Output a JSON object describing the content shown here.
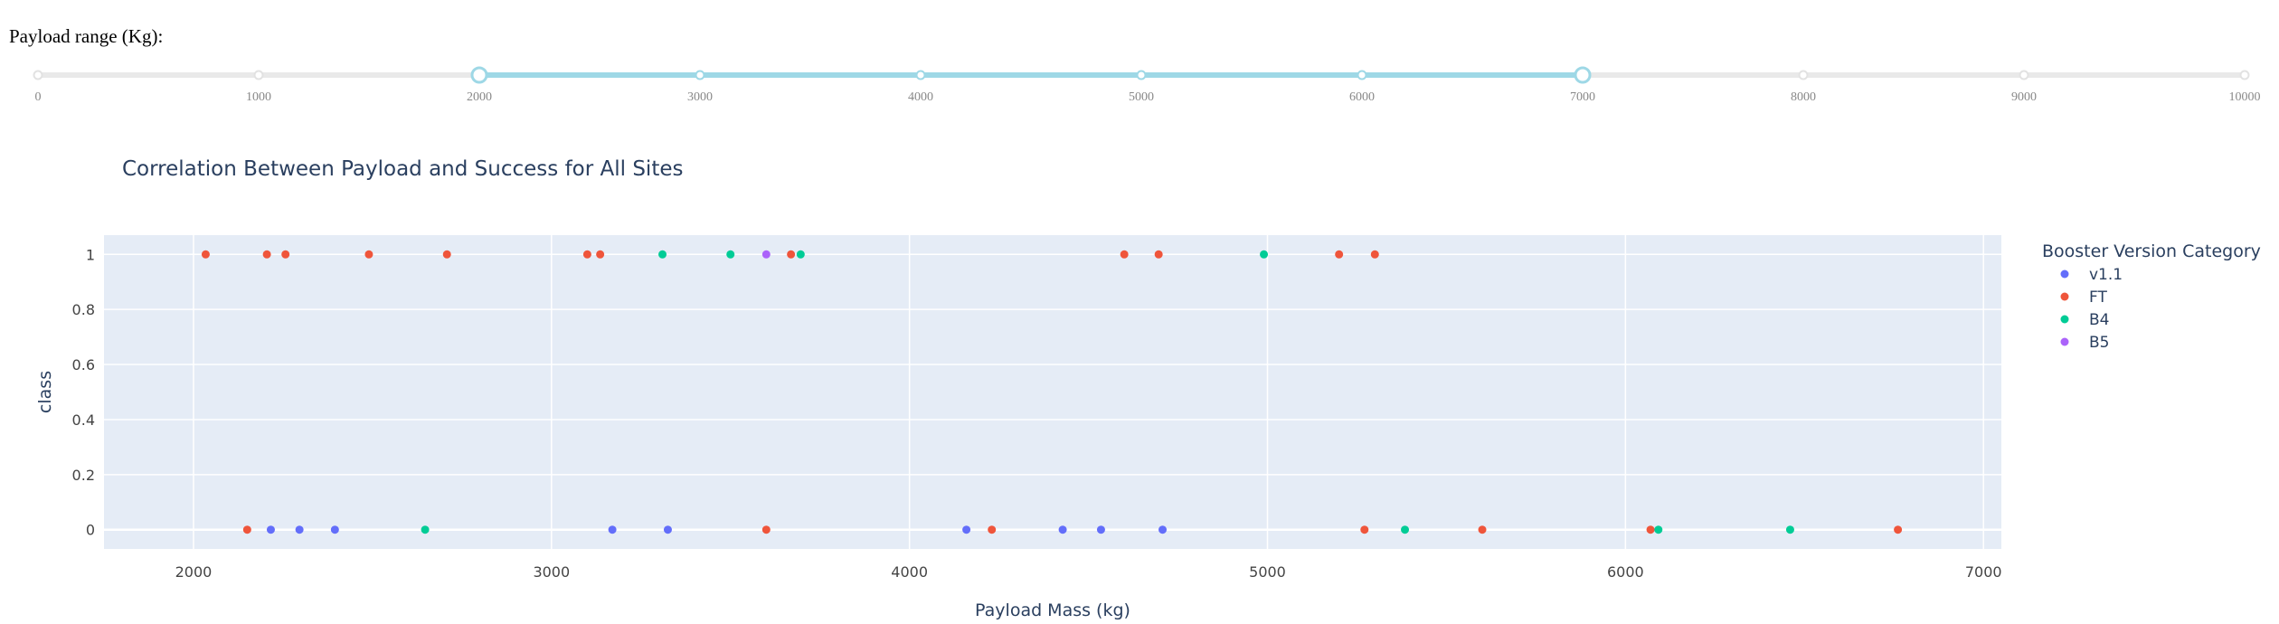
{
  "slider": {
    "label": "Payload range (Kg):",
    "min": 0,
    "max": 10000,
    "marks": [
      "0",
      "1000",
      "2000",
      "3000",
      "4000",
      "5000",
      "6000",
      "7000",
      "8000",
      "9000",
      "10000"
    ],
    "range": [
      2000,
      7000
    ],
    "accent_color": "#9ed8e6"
  },
  "chart_data": {
    "type": "scatter",
    "title": "Correlation Between Payload and Success for All Sites",
    "xlabel": "Payload Mass (kg)",
    "ylabel": "class",
    "xlim": [
      1750,
      7050
    ],
    "ylim": [
      -0.07,
      1.07
    ],
    "xticks": [
      2000,
      3000,
      4000,
      5000,
      6000,
      7000
    ],
    "yticks": [
      0,
      0.2,
      0.4,
      0.6,
      0.8,
      1
    ],
    "ytick_labels": [
      "0",
      "0.2",
      "0.4",
      "0.6",
      "0.8",
      "1"
    ],
    "grid": true,
    "legend_title": "Booster Version Category",
    "legend_position": "right",
    "series": [
      {
        "name": "v1.1",
        "color": "#636efa",
        "points": [
          [
            2216,
            0
          ],
          [
            2296,
            0
          ],
          [
            2395,
            0
          ],
          [
            3170,
            0
          ],
          [
            3325,
            0
          ],
          [
            4159,
            0
          ],
          [
            4428,
            0
          ],
          [
            4535,
            0
          ],
          [
            4707,
            0
          ]
        ]
      },
      {
        "name": "FT",
        "color": "#ef553b",
        "points": [
          [
            2034,
            1
          ],
          [
            2205,
            1
          ],
          [
            2257,
            1
          ],
          [
            2490,
            1
          ],
          [
            2708,
            1
          ],
          [
            3100,
            1
          ],
          [
            3136,
            1
          ],
          [
            3669,
            1
          ],
          [
            4600,
            1
          ],
          [
            4696,
            1
          ],
          [
            5200,
            1
          ],
          [
            5300,
            1
          ],
          [
            2150,
            0
          ],
          [
            3600,
            0
          ],
          [
            4230,
            0
          ],
          [
            5271,
            0
          ],
          [
            5600,
            0
          ],
          [
            6070,
            0
          ],
          [
            6761,
            0
          ]
        ]
      },
      {
        "name": "B4",
        "color": "#00cc96",
        "points": [
          [
            3310,
            1
          ],
          [
            3500,
            1
          ],
          [
            3696,
            1
          ],
          [
            4990,
            1
          ],
          [
            2647,
            0
          ],
          [
            5384,
            0
          ],
          [
            6092,
            0
          ],
          [
            6460,
            0
          ]
        ]
      },
      {
        "name": "B5",
        "color": "#ab63fa",
        "points": [
          [
            3600,
            1
          ]
        ]
      }
    ]
  }
}
